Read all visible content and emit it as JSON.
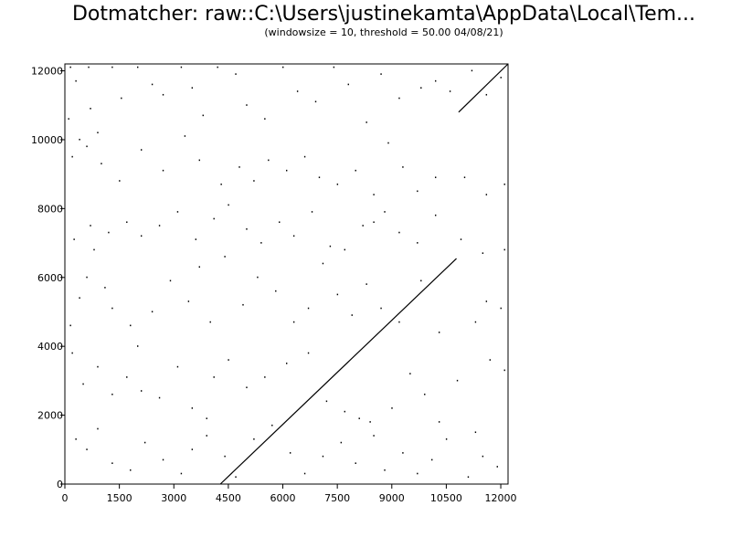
{
  "header": {
    "title": "Dotmatcher: raw::C:\\Users\\justinekamta\\AppData\\Local\\Tem...",
    "subtitle": "(windowsize = 10, threshold = 50.00  04/08/21)"
  },
  "chart_data": {
    "type": "scatter",
    "title": "Dotmatcher: raw::C:\\Users\\justinekamta\\AppData\\Local\\Tem...",
    "subtitle": "(windowsize = 10, threshold = 50.00  04/08/21)",
    "xlabel": "",
    "ylabel": "",
    "xlim": [
      0,
      12200
    ],
    "ylim": [
      0,
      12200
    ],
    "x_ticks": [
      0,
      1500,
      3000,
      4500,
      6000,
      7500,
      9000,
      10500,
      12000
    ],
    "y_ticks": [
      0,
      2000,
      4000,
      6000,
      8000,
      10000,
      12000
    ],
    "grid": false,
    "series": [
      {
        "kind": "diagonal-match",
        "segments": [
          {
            "x": [
              4280,
              10780
            ],
            "y": [
              0,
              6550
            ]
          },
          {
            "x": [
              10840,
              12200
            ],
            "y": [
              10800,
              12200
            ]
          }
        ]
      },
      {
        "kind": "noise-dots",
        "points": [
          [
            100,
            10600
          ],
          [
            150,
            12100
          ],
          [
            300,
            11700
          ],
          [
            400,
            10000
          ],
          [
            650,
            12100
          ],
          [
            700,
            10900
          ],
          [
            900,
            10200
          ],
          [
            1300,
            12100
          ],
          [
            1550,
            11200
          ],
          [
            2000,
            12100
          ],
          [
            2400,
            11600
          ],
          [
            2700,
            11300
          ],
          [
            3200,
            12100
          ],
          [
            3500,
            11500
          ],
          [
            3800,
            10700
          ],
          [
            4200,
            12100
          ],
          [
            4700,
            11900
          ],
          [
            5000,
            11000
          ],
          [
            5500,
            10600
          ],
          [
            6000,
            12100
          ],
          [
            6400,
            11400
          ],
          [
            6900,
            11100
          ],
          [
            7400,
            12100
          ],
          [
            7800,
            11600
          ],
          [
            8300,
            10500
          ],
          [
            8700,
            11900
          ],
          [
            9200,
            11200
          ],
          [
            9800,
            11500
          ],
          [
            10200,
            11700
          ],
          [
            10600,
            11400
          ],
          [
            11200,
            12000
          ],
          [
            11600,
            11300
          ],
          [
            12000,
            11800
          ],
          [
            200,
            9500
          ],
          [
            600,
            9800
          ],
          [
            1000,
            9300
          ],
          [
            1500,
            8800
          ],
          [
            2100,
            9700
          ],
          [
            2700,
            9100
          ],
          [
            3300,
            10100
          ],
          [
            3700,
            9400
          ],
          [
            4300,
            8700
          ],
          [
            4800,
            9200
          ],
          [
            5200,
            8800
          ],
          [
            5600,
            9400
          ],
          [
            6100,
            9100
          ],
          [
            6600,
            9500
          ],
          [
            7000,
            8900
          ],
          [
            7500,
            8700
          ],
          [
            8000,
            9100
          ],
          [
            8500,
            8400
          ],
          [
            8900,
            9900
          ],
          [
            9300,
            9200
          ],
          [
            9700,
            8500
          ],
          [
            10200,
            8900
          ],
          [
            11000,
            8900
          ],
          [
            11600,
            8400
          ],
          [
            12100,
            8700
          ],
          [
            250,
            7100
          ],
          [
            700,
            7500
          ],
          [
            800,
            6800
          ],
          [
            1200,
            7300
          ],
          [
            1700,
            7600
          ],
          [
            2100,
            7200
          ],
          [
            2600,
            7500
          ],
          [
            3100,
            7900
          ],
          [
            3600,
            7100
          ],
          [
            4100,
            7700
          ],
          [
            4500,
            8100
          ],
          [
            5000,
            7400
          ],
          [
            5400,
            7000
          ],
          [
            5900,
            7600
          ],
          [
            6300,
            7200
          ],
          [
            6800,
            7900
          ],
          [
            7300,
            6900
          ],
          [
            7700,
            6800
          ],
          [
            8200,
            7500
          ],
          [
            8500,
            7600
          ],
          [
            8800,
            7900
          ],
          [
            9200,
            7300
          ],
          [
            9700,
            7000
          ],
          [
            10200,
            7800
          ],
          [
            10900,
            7100
          ],
          [
            11500,
            6700
          ],
          [
            12100,
            6800
          ],
          [
            150,
            4600
          ],
          [
            400,
            5400
          ],
          [
            600,
            6000
          ],
          [
            1100,
            5700
          ],
          [
            1300,
            5100
          ],
          [
            1800,
            4600
          ],
          [
            2000,
            4000
          ],
          [
            2400,
            5000
          ],
          [
            2900,
            5900
          ],
          [
            3400,
            5300
          ],
          [
            3700,
            6300
          ],
          [
            4000,
            4700
          ],
          [
            4400,
            6600
          ],
          [
            4900,
            5200
          ],
          [
            5300,
            6000
          ],
          [
            5800,
            5600
          ],
          [
            6300,
            4700
          ],
          [
            6700,
            5100
          ],
          [
            7100,
            6400
          ],
          [
            7500,
            5500
          ],
          [
            7900,
            4900
          ],
          [
            8300,
            5800
          ],
          [
            8700,
            5100
          ],
          [
            9200,
            4700
          ],
          [
            9800,
            5900
          ],
          [
            10300,
            4400
          ],
          [
            11300,
            4700
          ],
          [
            11600,
            5300
          ],
          [
            12000,
            5100
          ],
          [
            200,
            3800
          ],
          [
            500,
            2900
          ],
          [
            900,
            3400
          ],
          [
            1300,
            2600
          ],
          [
            1700,
            3100
          ],
          [
            2100,
            2700
          ],
          [
            2600,
            2500
          ],
          [
            3100,
            3400
          ],
          [
            3500,
            2200
          ],
          [
            3900,
            1900
          ],
          [
            4100,
            3100
          ],
          [
            4500,
            3600
          ],
          [
            5000,
            2800
          ],
          [
            5500,
            3100
          ],
          [
            6100,
            3500
          ],
          [
            6700,
            3800
          ],
          [
            7200,
            2400
          ],
          [
            7700,
            2100
          ],
          [
            8100,
            1900
          ],
          [
            8500,
            1400
          ],
          [
            9000,
            2200
          ],
          [
            9500,
            3200
          ],
          [
            9900,
            2600
          ],
          [
            10300,
            1800
          ],
          [
            10800,
            3000
          ],
          [
            11300,
            1500
          ],
          [
            11700,
            3600
          ],
          [
            12100,
            3300
          ],
          [
            300,
            1300
          ],
          [
            600,
            1000
          ],
          [
            900,
            1600
          ],
          [
            1300,
            600
          ],
          [
            1800,
            400
          ],
          [
            2200,
            1200
          ],
          [
            2700,
            700
          ],
          [
            3200,
            300
          ],
          [
            3500,
            1000
          ],
          [
            3900,
            1400
          ],
          [
            4400,
            800
          ],
          [
            4700,
            200
          ],
          [
            5200,
            1300
          ],
          [
            5700,
            1700
          ],
          [
            6200,
            900
          ],
          [
            6600,
            300
          ],
          [
            7100,
            800
          ],
          [
            7600,
            1200
          ],
          [
            8000,
            600
          ],
          [
            8400,
            1800
          ],
          [
            8800,
            400
          ],
          [
            9300,
            900
          ],
          [
            9700,
            300
          ],
          [
            10100,
            700
          ],
          [
            10500,
            1300
          ],
          [
            11100,
            200
          ],
          [
            11500,
            800
          ],
          [
            11900,
            500
          ]
        ]
      }
    ]
  }
}
